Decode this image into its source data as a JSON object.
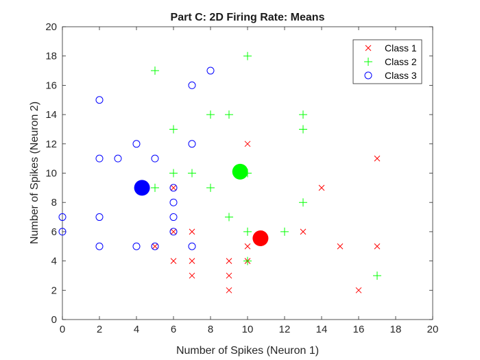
{
  "chart_data": {
    "type": "scatter",
    "title": "Part C: 2D Firing Rate: Means",
    "xlabel": "Number of Spikes (Neuron 1)",
    "ylabel": "Number of Spikes (Neuron 2)",
    "xlim": [
      0,
      20
    ],
    "ylim": [
      0,
      20
    ],
    "xticks": [
      0,
      2,
      4,
      6,
      8,
      10,
      12,
      14,
      16,
      18,
      20
    ],
    "yticks": [
      0,
      2,
      4,
      6,
      8,
      10,
      12,
      14,
      16,
      18,
      20
    ],
    "grid": false,
    "legend_position": "top-right",
    "series": [
      {
        "name": "Class 1",
        "marker": "x",
        "color": "#ff0000",
        "points": [
          [
            10,
            12
          ],
          [
            17,
            11
          ],
          [
            6,
            9
          ],
          [
            14,
            9
          ],
          [
            7,
            6
          ],
          [
            13,
            6
          ],
          [
            6,
            6
          ],
          [
            5,
            5
          ],
          [
            10,
            5
          ],
          [
            15,
            5
          ],
          [
            17,
            5
          ],
          [
            6,
            4
          ],
          [
            7,
            4
          ],
          [
            9,
            4
          ],
          [
            10,
            4
          ],
          [
            7,
            3
          ],
          [
            9,
            3
          ],
          [
            9,
            2
          ],
          [
            16,
            2
          ]
        ]
      },
      {
        "name": "Class 2",
        "marker": "+",
        "color": "#00ff00",
        "points": [
          [
            10,
            18
          ],
          [
            5,
            17
          ],
          [
            8,
            14
          ],
          [
            9,
            14
          ],
          [
            13,
            14
          ],
          [
            6,
            13
          ],
          [
            13,
            13
          ],
          [
            6,
            10
          ],
          [
            7,
            10
          ],
          [
            10,
            10
          ],
          [
            5,
            9
          ],
          [
            8,
            9
          ],
          [
            13,
            8
          ],
          [
            9,
            7
          ],
          [
            10,
            6
          ],
          [
            12,
            6
          ],
          [
            10,
            4
          ],
          [
            17,
            3
          ]
        ]
      },
      {
        "name": "Class 3",
        "marker": "o",
        "color": "#0000ff",
        "points": [
          [
            8,
            17
          ],
          [
            7,
            16
          ],
          [
            2,
            15
          ],
          [
            4,
            12
          ],
          [
            7,
            12
          ],
          [
            2,
            11
          ],
          [
            3,
            11
          ],
          [
            5,
            11
          ],
          [
            6,
            9
          ],
          [
            6,
            8
          ],
          [
            0,
            7
          ],
          [
            2,
            7
          ],
          [
            6,
            7
          ],
          [
            0,
            6
          ],
          [
            6,
            6
          ],
          [
            2,
            5
          ],
          [
            4,
            5
          ],
          [
            5,
            5
          ],
          [
            7,
            5
          ]
        ]
      }
    ],
    "means": [
      {
        "class": "Class 1",
        "color": "#ff0000",
        "x": 10.7,
        "y": 5.55
      },
      {
        "class": "Class 2",
        "color": "#00ff00",
        "x": 9.6,
        "y": 10.1
      },
      {
        "class": "Class 3",
        "color": "#0000ff",
        "x": 4.3,
        "y": 9.0
      }
    ]
  }
}
